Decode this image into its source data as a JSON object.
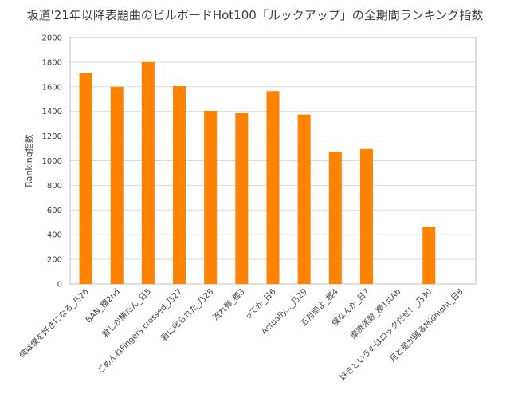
{
  "chart_data": {
    "type": "bar",
    "title": "坂道'21年以降表題曲のビルボードHot100「ルックアップ」の全期間ランキング指数",
    "xlabel": "",
    "ylabel": "Ranking指数",
    "ylim": [
      0,
      2000
    ],
    "yticks": [
      "0",
      "200",
      "400",
      "600",
      "800",
      "1000",
      "1200",
      "1400",
      "1600",
      "1800",
      "2000"
    ],
    "grid": true,
    "legend": "none",
    "bar_color": "#FF8200",
    "categories": [
      "僕は僕を好きになる_乃26",
      "BAN_櫻2nd",
      "君しか勝たん_日5",
      "ごめんねFingers crossed_乃27",
      "君に叱られた_乃28",
      "流れ弾_櫻3",
      "ってか_日6",
      "Actually..._乃29",
      "五月雨よ_櫻4",
      "僕なんか_日7",
      "摩擦係数_櫻1stAb",
      "好きというのはロックだぜ！_乃30",
      "月と星が踊るMidnight_日8"
    ],
    "values": [
      1710,
      1600,
      1800,
      1605,
      1405,
      1385,
      1565,
      1375,
      1075,
      1095,
      0,
      465,
      0
    ]
  }
}
